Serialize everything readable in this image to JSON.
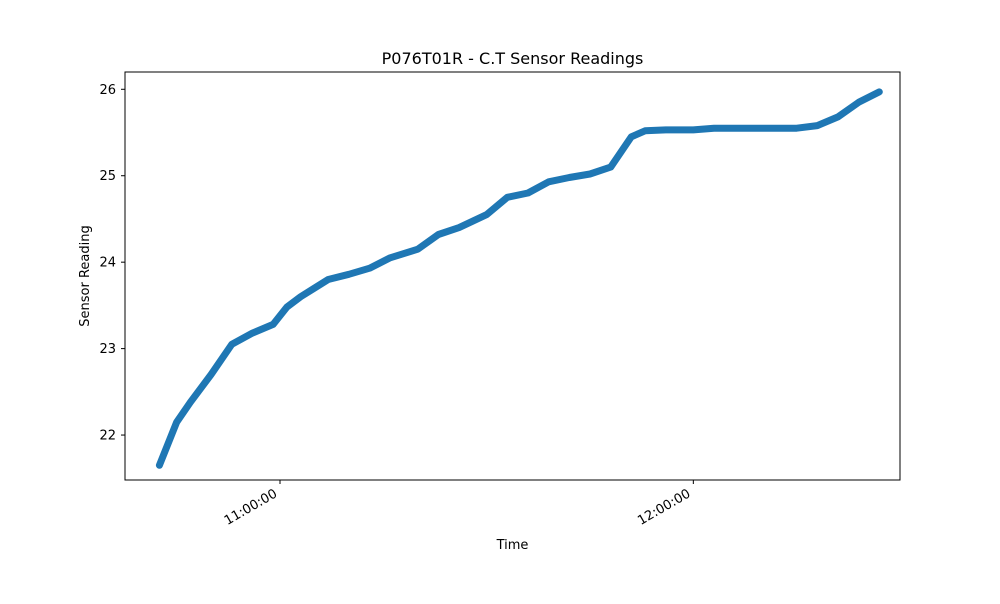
{
  "chart_data": {
    "type": "line",
    "title": "P076T01R - C.T Sensor Readings",
    "xlabel": "Time",
    "ylabel": "Sensor Reading",
    "xlim": [
      "10:37:30",
      "12:30:00"
    ],
    "ylim": [
      21.48,
      26.2
    ],
    "x_ticks": [
      {
        "value": "11:00:00",
        "label": "11:00:00"
      },
      {
        "value": "12:00:00",
        "label": "12:00:00"
      }
    ],
    "y_ticks": [
      22,
      23,
      24,
      25,
      26
    ],
    "grid": false,
    "legend": "none",
    "series": [
      {
        "color": "#1f77b4",
        "x": [
          "10:42:30",
          "10:45:00",
          "10:47:00",
          "10:50:00",
          "10:53:00",
          "10:56:00",
          "10:59:00",
          "11:01:00",
          "11:03:00",
          "11:05:00",
          "11:07:00",
          "11:10:00",
          "11:13:00",
          "11:16:00",
          "11:20:00",
          "11:23:00",
          "11:26:00",
          "11:30:00",
          "11:33:00",
          "11:36:00",
          "11:39:00",
          "11:42:00",
          "11:45:00",
          "11:48:00",
          "11:51:00",
          "11:53:00",
          "11:56:00",
          "11:57:30",
          "12:00:00",
          "12:03:00",
          "12:06:00",
          "12:09:00",
          "12:12:00",
          "12:15:00",
          "12:18:00",
          "12:21:00",
          "12:24:00",
          "12:27:00"
        ],
        "y": [
          21.65,
          22.15,
          22.38,
          22.7,
          23.05,
          23.18,
          23.28,
          23.48,
          23.6,
          23.7,
          23.8,
          23.86,
          23.93,
          24.05,
          24.15,
          24.32,
          24.4,
          24.55,
          24.75,
          24.8,
          24.93,
          24.98,
          25.02,
          25.1,
          25.45,
          25.52,
          25.53,
          25.53,
          25.53,
          25.55,
          25.55,
          25.55,
          25.55,
          25.55,
          25.58,
          25.68,
          25.85,
          25.97
        ]
      }
    ]
  }
}
